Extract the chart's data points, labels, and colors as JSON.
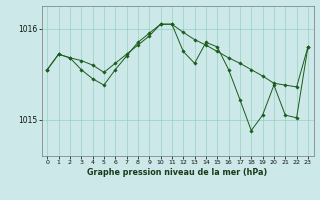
{
  "title": "Graphe pression niveau de la mer (hPa)",
  "bg_color": "#cce8e8",
  "grid_color": "#88ccbb",
  "line_color": "#1a5c1a",
  "xlim": [
    -0.5,
    23.5
  ],
  "ylim": [
    1014.6,
    1016.25
  ],
  "yticks": [
    1015.0,
    1016.0
  ],
  "ytick_labels": [
    "1015",
    "1016"
  ],
  "xticks": [
    0,
    1,
    2,
    3,
    4,
    5,
    6,
    7,
    8,
    9,
    10,
    11,
    12,
    13,
    14,
    15,
    16,
    17,
    18,
    19,
    20,
    21,
    22,
    23
  ],
  "line1_y": [
    1015.55,
    1015.72,
    1015.68,
    1015.65,
    1015.6,
    1015.52,
    1015.62,
    1015.72,
    1015.82,
    1015.92,
    1016.05,
    1016.05,
    1015.96,
    1015.88,
    1015.82,
    1015.75,
    1015.68,
    1015.62,
    1015.55,
    1015.48,
    1015.4,
    1015.38,
    1015.36,
    1015.8
  ],
  "line2_y": [
    1015.55,
    1015.72,
    1015.68,
    1015.55,
    1015.45,
    1015.38,
    1015.55,
    1015.7,
    1015.85,
    1015.95,
    1016.05,
    1016.05,
    1015.75,
    1015.62,
    1015.85,
    1015.8,
    1015.55,
    1015.22,
    1014.88,
    1015.05,
    1015.38,
    1015.05,
    1015.02,
    1015.8
  ],
  "xlabel_fontsize": 5.8,
  "ytick_fontsize": 5.5,
  "xtick_fontsize": 4.5,
  "linewidth": 0.7,
  "markersize": 1.8
}
